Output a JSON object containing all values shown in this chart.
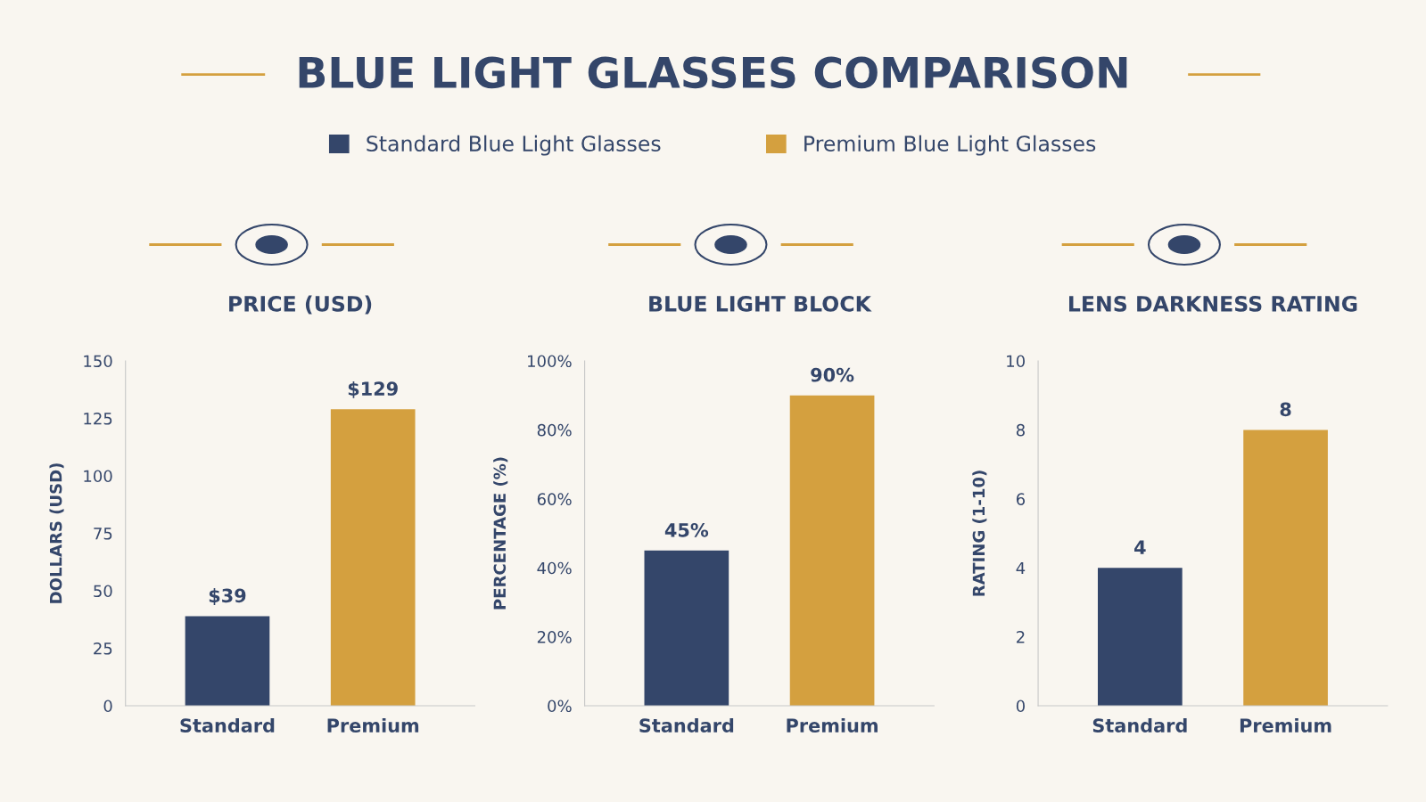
{
  "chart_data": [
    {
      "type": "bar",
      "title": "PRICE (USD)",
      "ylabel": "DOLLARS (USD)",
      "annotations": [
        "BLUE LIGHT GLASSES COMPARISON"
      ],
      "legend": "top",
      "categories": [
        "Standard",
        "Premium"
      ],
      "series": [
        {
          "name": "Standard Blue Light Glasses",
          "color": "#34466a",
          "values": [
            39,
            null
          ],
          "value_labels": [
            "$39",
            null
          ]
        },
        {
          "name": "Premium Blue Light Glasses",
          "color": "#d4a03f",
          "values": [
            null,
            129
          ],
          "value_labels": [
            null,
            "$129"
          ]
        }
      ],
      "ylim": [
        0,
        150
      ],
      "yticks": [
        0,
        25,
        50,
        75,
        100,
        125,
        150
      ],
      "grid": false
    },
    {
      "type": "bar",
      "title": "BLUE LIGHT BLOCK",
      "ylabel": "PERCENTAGE (%)",
      "categories": [
        "Standard",
        "Premium"
      ],
      "series": [
        {
          "color": "#34466a",
          "values": [
            45,
            null
          ],
          "value_labels": [
            "45%",
            null
          ]
        },
        {
          "color": "#d4a03f",
          "values": [
            null,
            90
          ],
          "value_labels": [
            null,
            "90%"
          ]
        }
      ],
      "ylim": [
        0,
        100
      ],
      "yticks": [
        {
          "value": 0,
          "label": "0%"
        },
        {
          "value": 20,
          "label": "20%"
        },
        {
          "value": 40,
          "label": "40%"
        },
        {
          "value": 60,
          "label": "60%"
        },
        {
          "value": 80,
          "label": "80%"
        },
        {
          "value": 100,
          "label": "100%"
        }
      ],
      "grid": false
    },
    {
      "type": "bar",
      "title": "LENS DARKNESS RATING",
      "ylabel": "RATING (1-10)",
      "categories": [
        "Standard",
        "Premium"
      ],
      "series": [
        {
          "color": "#34466a",
          "values": [
            4,
            null
          ],
          "value_labels": [
            "4",
            null
          ]
        },
        {
          "color": "#d4a03f",
          "values": [
            null,
            8
          ],
          "value_labels": [
            null,
            "8"
          ]
        }
      ],
      "ylim": [
        0,
        10
      ],
      "yticks": [
        0,
        2,
        4,
        6,
        8,
        10
      ],
      "grid": false
    }
  ]
}
